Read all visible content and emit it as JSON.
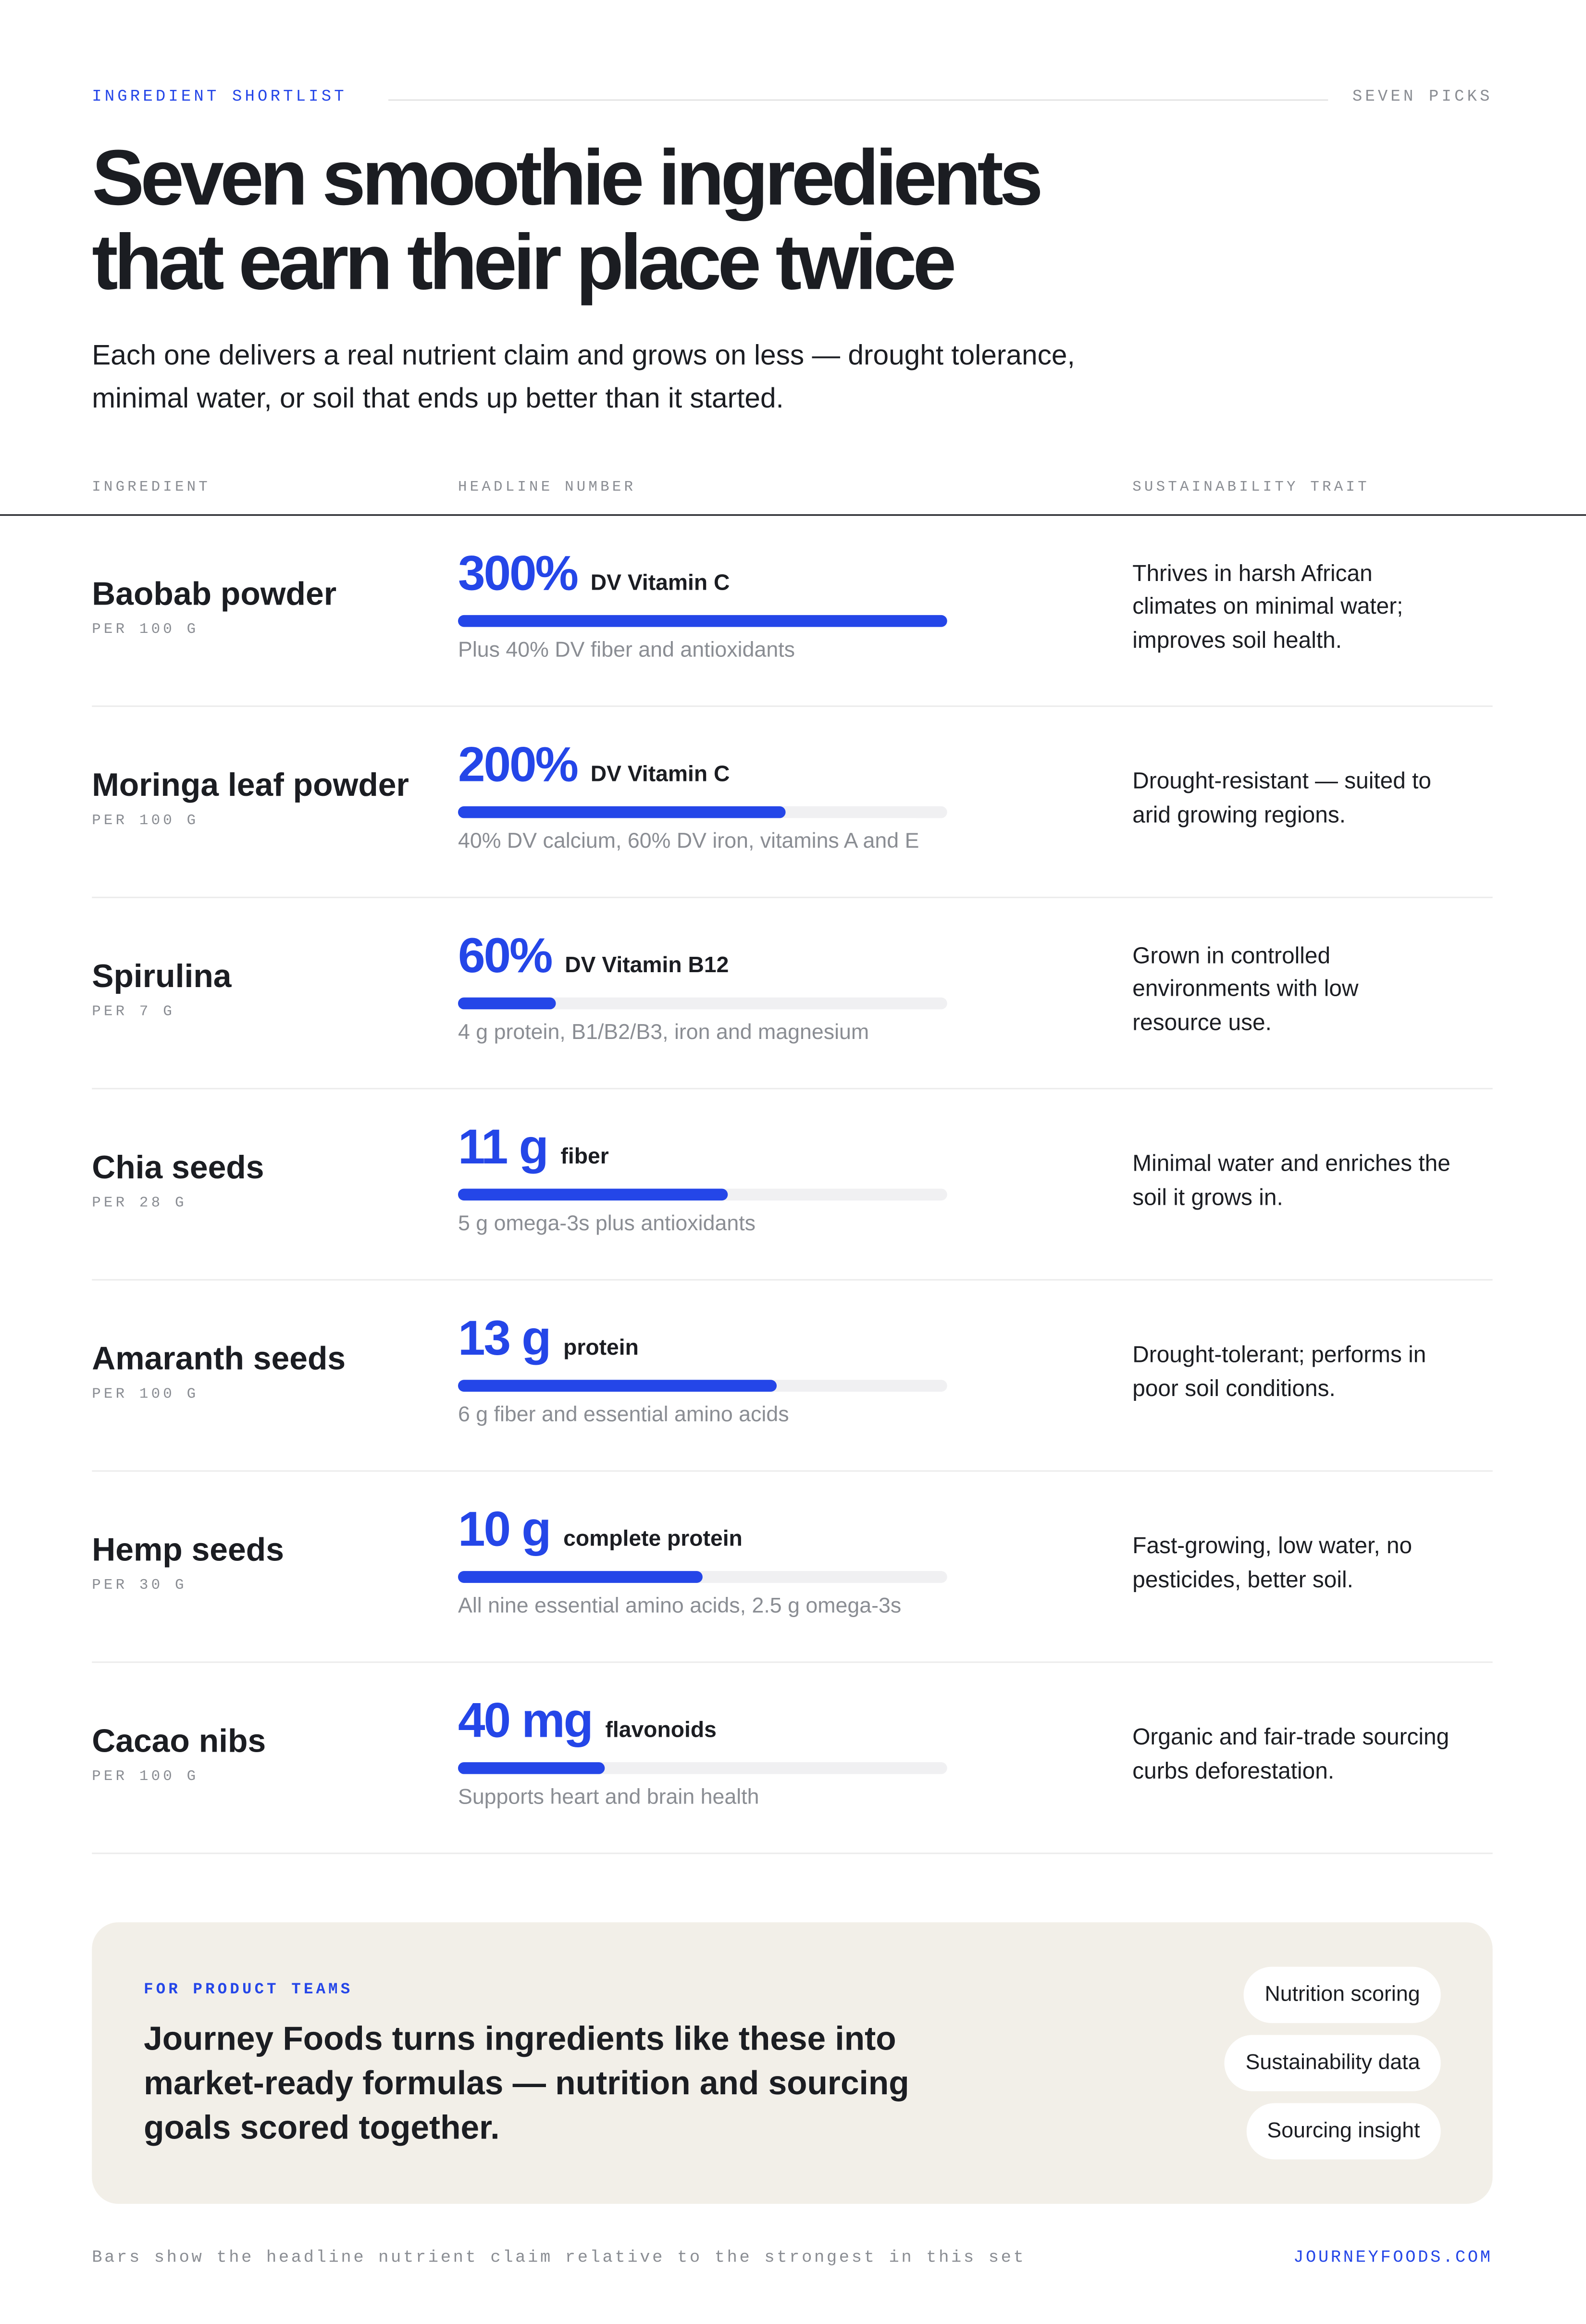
{
  "header": {
    "eyebrow": "INGREDIENT SHORTLIST",
    "tag": "SEVEN PICKS",
    "title": "Seven smoothie ingredients that earn their place twice",
    "subtitle": "Each one delivers a real nutrient claim and grows on less — drought tolerance, minimal water, or soil that ends up better than it started."
  },
  "table": {
    "columns": [
      "INGREDIENT",
      "HEADLINE NUMBER",
      "SUSTAINABILITY TRAIT"
    ],
    "bar_color": "#2446e8",
    "rows": [
      {
        "name": "Baobab powder",
        "basis": "PER 100 G",
        "headline": "300%",
        "claim": "DV Vitamin C",
        "bar": 100,
        "detail": "Plus 40% DV fiber and antioxidants",
        "trait": "Thrives in harsh African climates on minimal water; improves soil health."
      },
      {
        "name": "Moringa leaf powder",
        "basis": "PER 100 G",
        "headline": "200%",
        "claim": "DV Vitamin C",
        "bar": 67,
        "detail": "40% DV calcium, 60% DV iron, vitamins A and E",
        "trait": "Drought-resistant — suited to arid growing regions."
      },
      {
        "name": "Spirulina",
        "basis": "PER 7 G",
        "headline": "60%",
        "claim": "DV Vitamin B12",
        "bar": 20,
        "detail": "4 g protein, B1/B2/B3, iron and magnesium",
        "trait": "Grown in controlled environments with low resource use."
      },
      {
        "name": "Chia seeds",
        "basis": "PER 28 G",
        "headline": "11 g",
        "claim": "fiber",
        "bar": 55,
        "detail": "5 g omega-3s plus antioxidants",
        "trait": "Minimal water and enriches the soil it grows in."
      },
      {
        "name": "Amaranth seeds",
        "basis": "PER 100 G",
        "headline": "13 g",
        "claim": "protein",
        "bar": 65,
        "detail": "6 g fiber and essential amino acids",
        "trait": "Drought-tolerant; performs in poor soil conditions."
      },
      {
        "name": "Hemp seeds",
        "basis": "PER 30 G",
        "headline": "10 g",
        "claim": "complete protein",
        "bar": 50,
        "detail": "All nine essential amino acids, 2.5 g omega-3s",
        "trait": "Fast-growing, low water, no pesticides, better soil."
      },
      {
        "name": "Cacao nibs",
        "basis": "PER 100 G",
        "headline": "40 mg",
        "claim": "flavonoids",
        "bar": 30,
        "detail": "Supports heart and brain health",
        "trait": "Organic and fair-trade sourcing curbs deforestation."
      }
    ]
  },
  "cta": {
    "eyebrow": "FOR PRODUCT TEAMS",
    "text": "Journey Foods turns ingredients like these into market-ready formulas — nutrition and sourcing goals scored together.",
    "chips": [
      "Nutrition scoring",
      "Sustainability data",
      "Sourcing insight"
    ]
  },
  "footer": {
    "note": "Bars show the headline nutrient claim relative to the strongest in this set",
    "link": "JOURNEYFOODS.COM"
  }
}
